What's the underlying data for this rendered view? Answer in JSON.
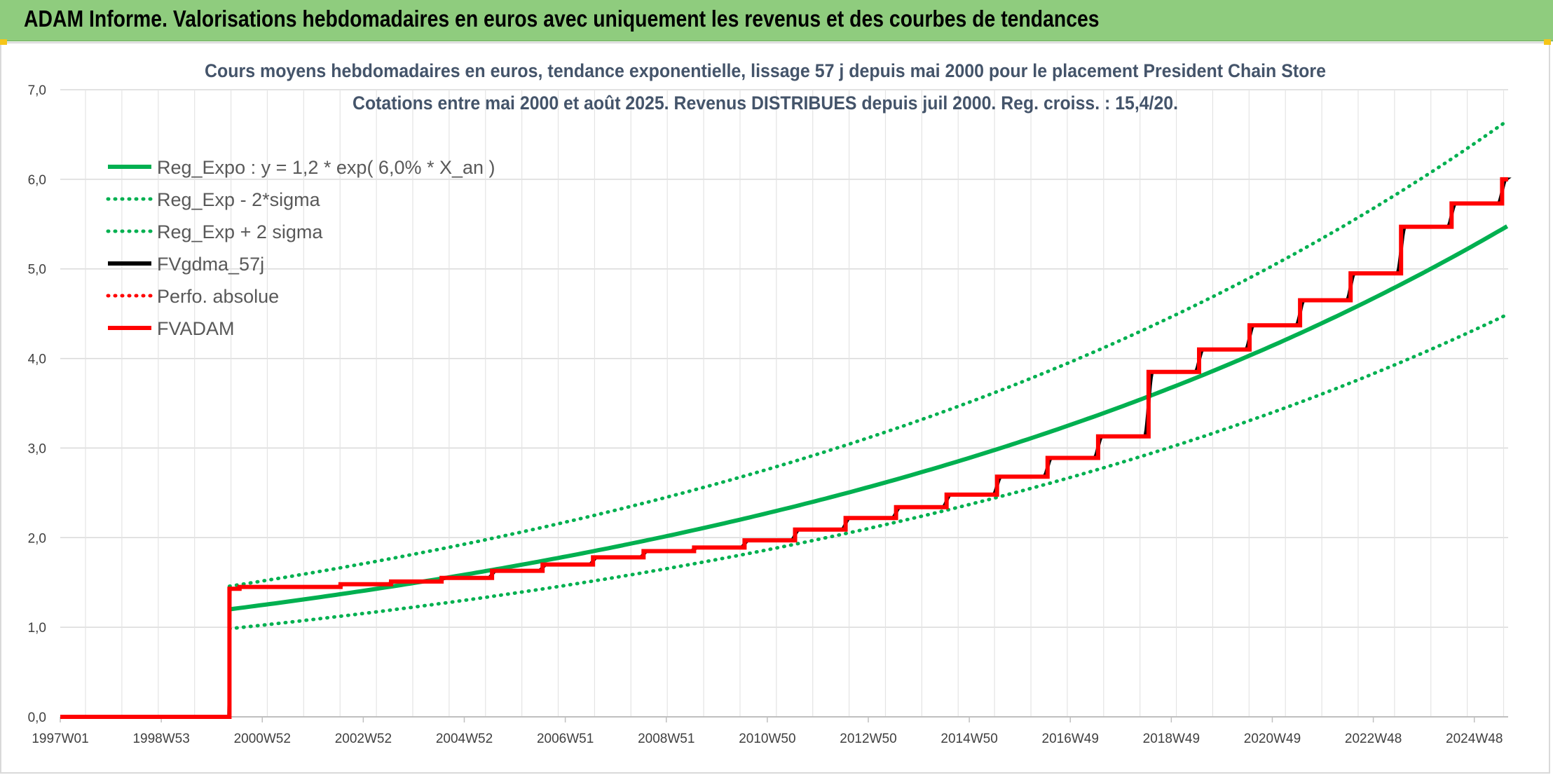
{
  "banner": {
    "title": "ADAM Informe. Valorisations hebdomadaires en euros avec uniquement les revenus et des courbes de tendances"
  },
  "chart_data": {
    "type": "line",
    "title": "Cours moyens hebdomadaires en euros, tendance exponentielle, lissage 57 j depuis mai 2000 pour le placement President Chain Store",
    "subtitle": "Cotations entre mai 2000 et août 2025. Revenus DISTRIBUES depuis juil 2000. Reg. croiss. : 15,4/20.",
    "xlabel": "",
    "ylabel": "",
    "x_range": [
      1997.0,
      2025.67
    ],
    "ylim": [
      0,
      7
    ],
    "y_ticks": [
      "0,0",
      "1,0",
      "2,0",
      "3,0",
      "4,0",
      "5,0",
      "6,0",
      "7,0"
    ],
    "x_ticks": [
      {
        "label": "1997W01",
        "x": 1997.0
      },
      {
        "label": "1998W53",
        "x": 1999.0
      },
      {
        "label": "2000W52",
        "x": 2001.0
      },
      {
        "label": "2002W52",
        "x": 2003.0
      },
      {
        "label": "2004W52",
        "x": 2005.0
      },
      {
        "label": "2006W51",
        "x": 2007.0
      },
      {
        "label": "2008W51",
        "x": 2009.0
      },
      {
        "label": "2010W50",
        "x": 2011.0
      },
      {
        "label": "2012W50",
        "x": 2013.0
      },
      {
        "label": "2014W50",
        "x": 2015.0
      },
      {
        "label": "2016W49",
        "x": 2017.0
      },
      {
        "label": "2018W49",
        "x": 2019.0
      },
      {
        "label": "2020W49",
        "x": 2021.0
      },
      {
        "label": "2022W48",
        "x": 2023.0
      },
      {
        "label": "2024W48",
        "x": 2025.0
      }
    ],
    "grid": true,
    "legend_position": "top-left",
    "regression": {
      "a": 1.2,
      "rate": 0.06,
      "x_start": 2000.35,
      "x_end": 2025.67
    },
    "series": [
      {
        "name": "Reg_Expo : y = 1,2 * exp( 6,0% *  X_an )",
        "kind": "reg",
        "color": "#00b050",
        "style": "solid",
        "factor": 1.0,
        "x": [
          2000.35,
          2025.67
        ],
        "y": [
          1.2,
          5.31
        ]
      },
      {
        "name": "Reg_Exp - 2*sigma",
        "kind": "reg",
        "color": "#00b050",
        "style": "dotted",
        "factor": 0.82,
        "x": [
          2000.35,
          2025.67
        ],
        "y": [
          0.96,
          4.35
        ]
      },
      {
        "name": "Reg_Exp + 2 sigma",
        "kind": "reg",
        "color": "#00b050",
        "style": "dotted",
        "factor": 1.215,
        "x": [
          2000.35,
          2025.67
        ],
        "y": [
          1.47,
          6.45
        ]
      },
      {
        "name": "FVgdma_57j",
        "kind": "smooth",
        "color": "#000000",
        "style": "solid"
      },
      {
        "name": "Perfo. absolue",
        "kind": "none",
        "color": "#ff0000",
        "style": "dotted"
      },
      {
        "name": "FVADAM",
        "kind": "step",
        "color": "#ff0000",
        "style": "solid",
        "pre_value": 0.0,
        "start_x": 2000.35,
        "end_x": 2025.67,
        "steps": [
          {
            "x": 2000.35,
            "y": 1.43
          },
          {
            "x": 2000.55,
            "y": 1.45
          },
          {
            "x": 2002.55,
            "y": 1.48
          },
          {
            "x": 2003.55,
            "y": 1.51
          },
          {
            "x": 2004.55,
            "y": 1.55
          },
          {
            "x": 2005.55,
            "y": 1.63
          },
          {
            "x": 2006.55,
            "y": 1.7
          },
          {
            "x": 2007.55,
            "y": 1.78
          },
          {
            "x": 2008.55,
            "y": 1.85
          },
          {
            "x": 2009.55,
            "y": 1.89
          },
          {
            "x": 2010.55,
            "y": 1.97
          },
          {
            "x": 2011.55,
            "y": 2.09
          },
          {
            "x": 2012.55,
            "y": 2.22
          },
          {
            "x": 2013.55,
            "y": 2.34
          },
          {
            "x": 2014.55,
            "y": 2.48
          },
          {
            "x": 2015.55,
            "y": 2.68
          },
          {
            "x": 2016.55,
            "y": 2.89
          },
          {
            "x": 2017.55,
            "y": 3.13
          },
          {
            "x": 2018.55,
            "y": 3.85
          },
          {
            "x": 2019.55,
            "y": 4.1
          },
          {
            "x": 2020.55,
            "y": 4.37
          },
          {
            "x": 2021.55,
            "y": 4.65
          },
          {
            "x": 2022.55,
            "y": 4.95
          },
          {
            "x": 2023.55,
            "y": 5.47
          },
          {
            "x": 2024.55,
            "y": 5.73
          },
          {
            "x": 2025.55,
            "y": 6.0
          }
        ]
      }
    ]
  }
}
